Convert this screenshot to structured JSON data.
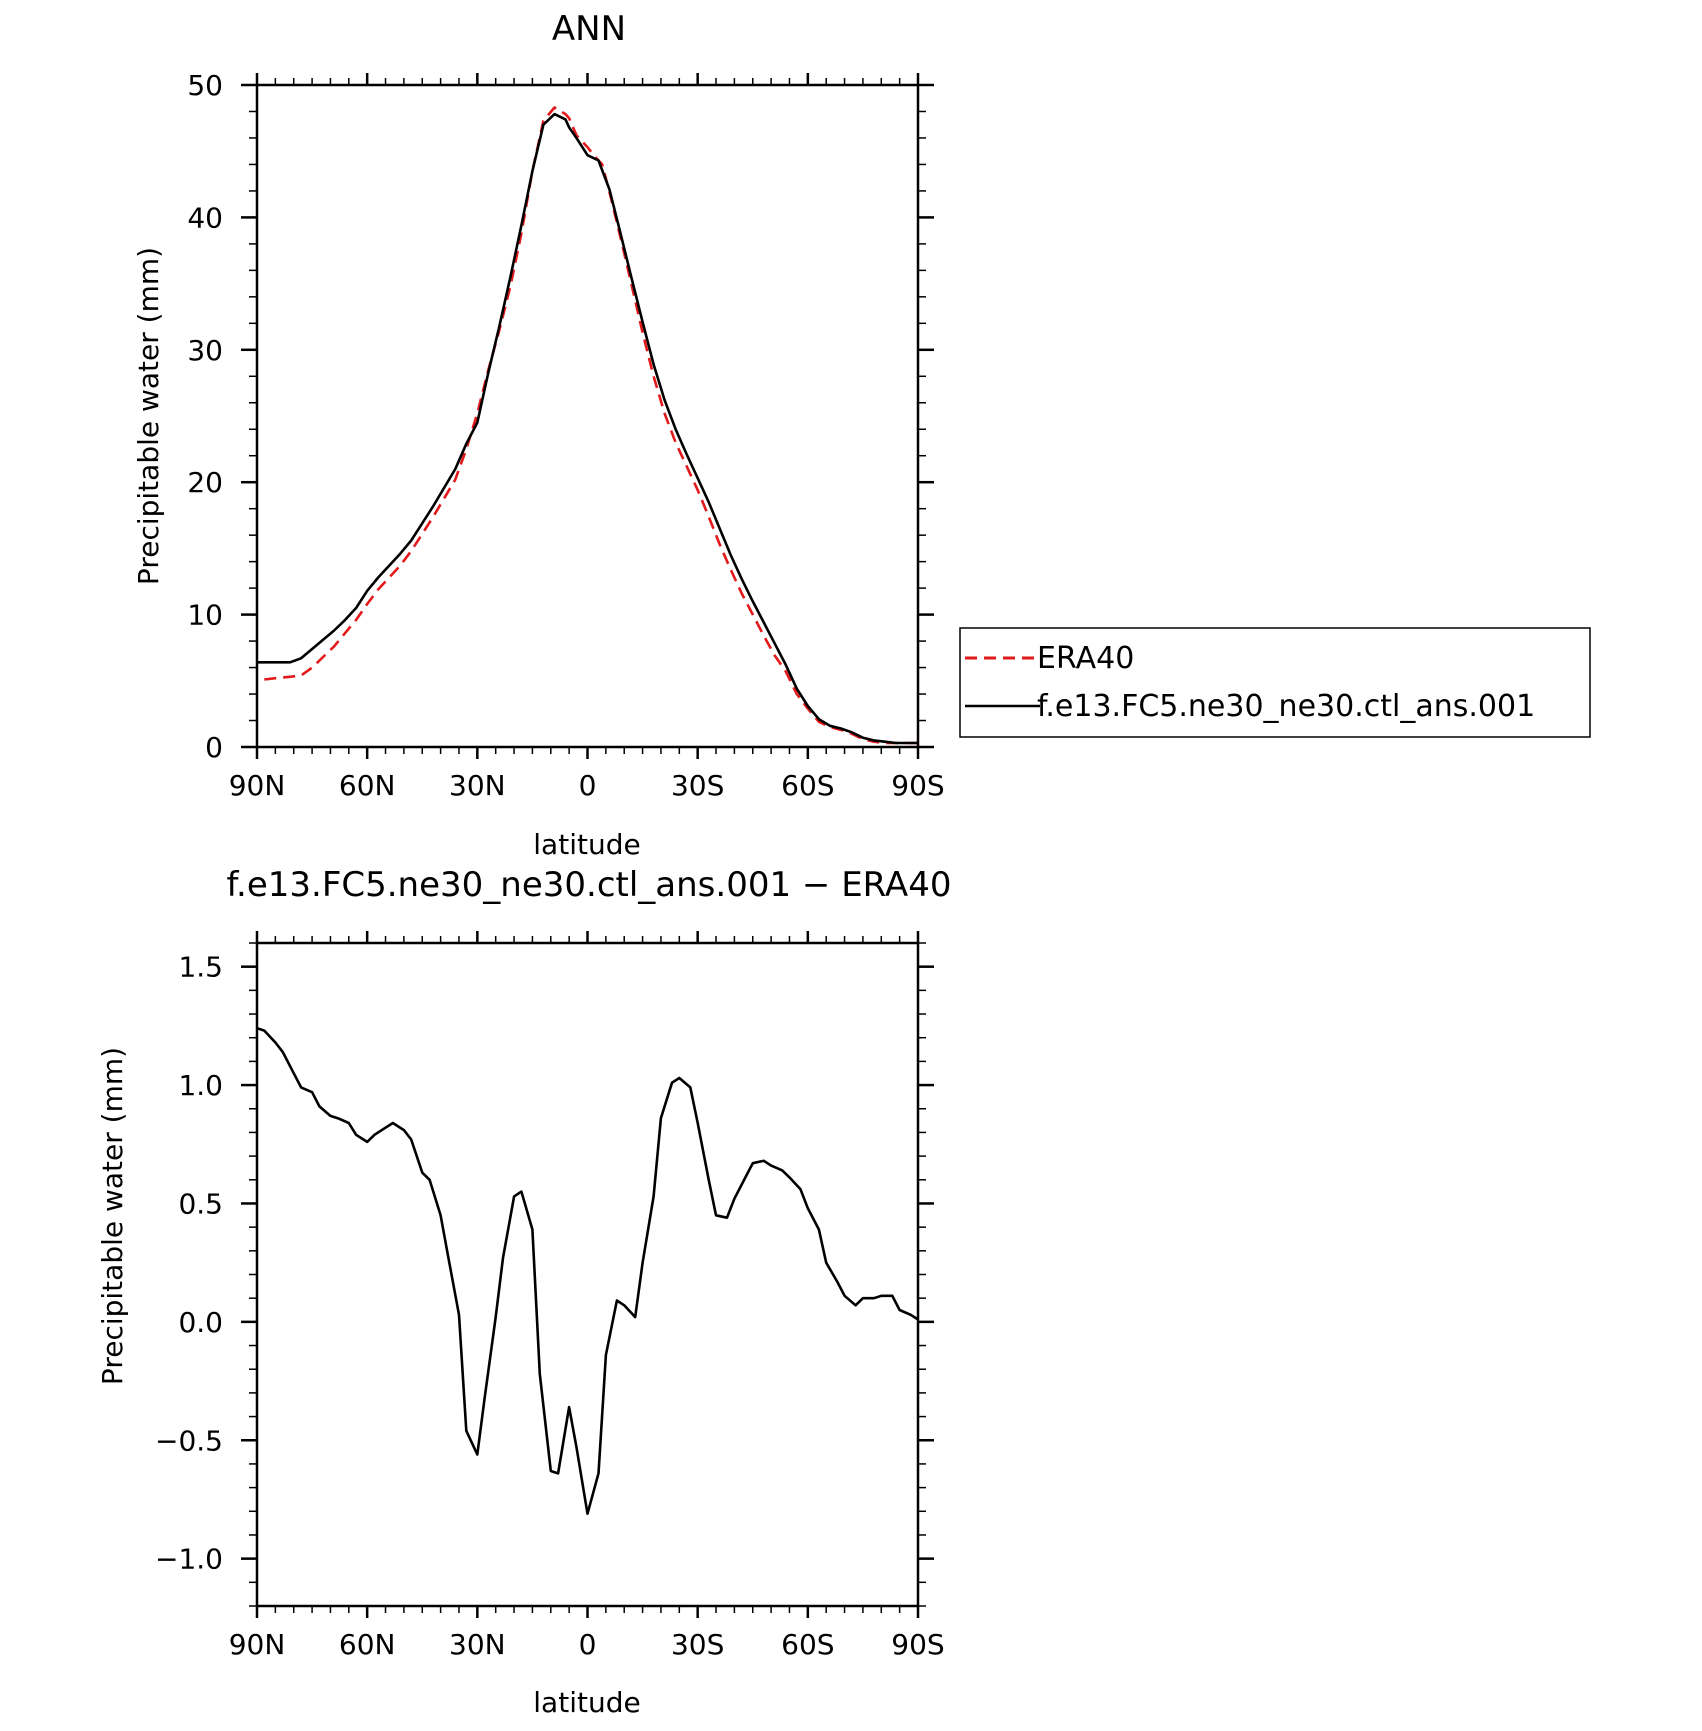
{
  "chart_data": [
    {
      "type": "line",
      "title": "ANN",
      "xlabel": "latitude",
      "ylabel": "Precipitable water (mm)",
      "xlim": [
        -90,
        90
      ],
      "ylim": [
        0,
        50
      ],
      "x_ticks": [
        -90,
        -60,
        -30,
        0,
        30,
        60,
        90
      ],
      "x_tick_labels": [
        "90N",
        "60N",
        "30N",
        "0",
        "30S",
        "60S",
        "90S"
      ],
      "y_ticks": [
        0,
        10,
        20,
        30,
        40,
        50
      ],
      "y_tick_labels": [
        "0",
        "10",
        "20",
        "30",
        "40",
        "50"
      ],
      "legend": "right",
      "series": [
        {
          "name": "ERA40",
          "color": "#e31a1c",
          "dash": "dashed",
          "x": [
            -88,
            -85,
            -81,
            -78,
            -75,
            -72,
            -69,
            -66,
            -63,
            -60,
            -57,
            -54,
            -51,
            -48,
            -45,
            -42,
            -39,
            -36,
            -33,
            -30,
            -27,
            -24,
            -21,
            -18,
            -15,
            -12,
            -9,
            -6,
            -5,
            -3,
            0,
            2,
            4,
            6,
            9,
            12,
            15,
            18,
            21,
            24,
            27,
            30,
            33,
            36,
            39,
            42,
            45,
            48,
            51,
            54,
            57,
            60,
            63,
            66,
            69,
            72,
            75,
            78,
            81,
            84,
            87,
            90
          ],
          "y": [
            5.1,
            5.2,
            5.3,
            5.4,
            6.0,
            6.8,
            7.6,
            8.6,
            9.6,
            10.8,
            11.9,
            12.8,
            13.7,
            14.8,
            16.1,
            17.4,
            18.8,
            20.2,
            22.5,
            25.2,
            28.5,
            31.5,
            34.8,
            38.8,
            43.5,
            47.3,
            48.3,
            47.8,
            47.5,
            46.2,
            45.3,
            44.6,
            44.0,
            41.9,
            38.5,
            34.9,
            31.3,
            28.0,
            25.2,
            23.0,
            21.2,
            19.4,
            17.4,
            15.3,
            13.4,
            11.6,
            10.0,
            8.4,
            6.9,
            5.7,
            4.0,
            2.9,
            1.9,
            1.5,
            1.3,
            1.0,
            0.6,
            0.4,
            0.3,
            0.3,
            0.3,
            0.3
          ]
        },
        {
          "name": "f.e13.FC5.ne30_ne30.ctl_ans.001",
          "color": "#000000",
          "dash": "solid",
          "x": [
            -90,
            -87,
            -84,
            -81,
            -78,
            -75,
            -72,
            -69,
            -66,
            -63,
            -60,
            -57,
            -54,
            -51,
            -48,
            -45,
            -42,
            -39,
            -36,
            -33,
            -30,
            -27,
            -24,
            -21,
            -18,
            -15,
            -12,
            -9,
            -6,
            -5,
            -3,
            0,
            3,
            6,
            9,
            12,
            15,
            18,
            21,
            24,
            27,
            30,
            33,
            36,
            39,
            42,
            45,
            48,
            51,
            54,
            57,
            60,
            63,
            66,
            69,
            72,
            75,
            78,
            81,
            84,
            87,
            90
          ],
          "y": [
            6.4,
            6.4,
            6.4,
            6.4,
            6.7,
            7.4,
            8.1,
            8.8,
            9.6,
            10.5,
            11.8,
            12.8,
            13.7,
            14.6,
            15.6,
            16.9,
            18.2,
            19.6,
            21.0,
            22.9,
            24.5,
            28.3,
            31.8,
            35.5,
            39.4,
            43.5,
            47.0,
            47.8,
            47.4,
            46.8,
            46.0,
            44.7,
            44.3,
            42.1,
            38.8,
            35.4,
            32.1,
            28.9,
            26.2,
            24.0,
            22.1,
            20.3,
            18.5,
            16.5,
            14.5,
            12.7,
            11.0,
            9.4,
            7.8,
            6.2,
            4.4,
            3.1,
            2.1,
            1.6,
            1.4,
            1.1,
            0.7,
            0.5,
            0.4,
            0.3,
            0.3,
            0.3
          ]
        }
      ]
    },
    {
      "type": "line",
      "title": "f.e13.FC5.ne30_ne30.ctl_ans.001 − ERA40",
      "xlabel": "latitude",
      "ylabel": "Precipitable water (mm)",
      "xlim": [
        -90,
        90
      ],
      "ylim": [
        -1.2,
        1.6
      ],
      "x_ticks": [
        -90,
        -60,
        -30,
        0,
        30,
        60,
        90
      ],
      "x_tick_labels": [
        "90N",
        "60N",
        "30N",
        "0",
        "30S",
        "60S",
        "90S"
      ],
      "y_ticks": [
        -1.0,
        -0.5,
        0.0,
        0.5,
        1.0,
        1.5
      ],
      "y_tick_labels": [
        "−1.0",
        "−0.5",
        "0.0",
        "0.5",
        "1.0",
        "1.5"
      ],
      "series": [
        {
          "color": "#000000",
          "dash": "solid",
          "x": [
            -90,
            -88,
            -85,
            -83,
            -80,
            -78,
            -75,
            -73,
            -70,
            -68,
            -65,
            -63,
            -60,
            -58,
            -55,
            -53,
            -50,
            -48,
            -45,
            -43,
            -40,
            -38,
            -35,
            -33,
            -30,
            -28,
            -25,
            -23,
            -20,
            -18,
            -15,
            -13,
            -10,
            -8,
            -5,
            -3,
            0,
            3,
            5,
            8,
            10,
            13,
            15,
            18,
            20,
            23,
            25,
            28,
            30,
            33,
            35,
            38,
            40,
            43,
            45,
            48,
            50,
            53,
            55,
            58,
            60,
            63,
            65,
            68,
            70,
            73,
            75,
            78,
            80,
            83,
            85,
            88,
            90
          ],
          "y": [
            1.24,
            1.23,
            1.18,
            1.14,
            1.05,
            0.99,
            0.97,
            0.91,
            0.87,
            0.86,
            0.84,
            0.79,
            0.76,
            0.79,
            0.82,
            0.84,
            0.81,
            0.77,
            0.63,
            0.6,
            0.45,
            0.28,
            0.03,
            -0.46,
            -0.56,
            -0.32,
            0.02,
            0.27,
            0.53,
            0.55,
            0.39,
            -0.22,
            -0.63,
            -0.64,
            -0.36,
            -0.53,
            -0.81,
            -0.64,
            -0.14,
            0.09,
            0.07,
            0.02,
            0.25,
            0.53,
            0.86,
            1.01,
            1.03,
            0.99,
            0.84,
            0.6,
            0.45,
            0.44,
            0.52,
            0.61,
            0.67,
            0.68,
            0.66,
            0.64,
            0.61,
            0.56,
            0.48,
            0.39,
            0.25,
            0.17,
            0.11,
            0.07,
            0.1,
            0.1,
            0.11,
            0.11,
            0.05,
            0.03,
            0.01
          ]
        }
      ]
    }
  ]
}
